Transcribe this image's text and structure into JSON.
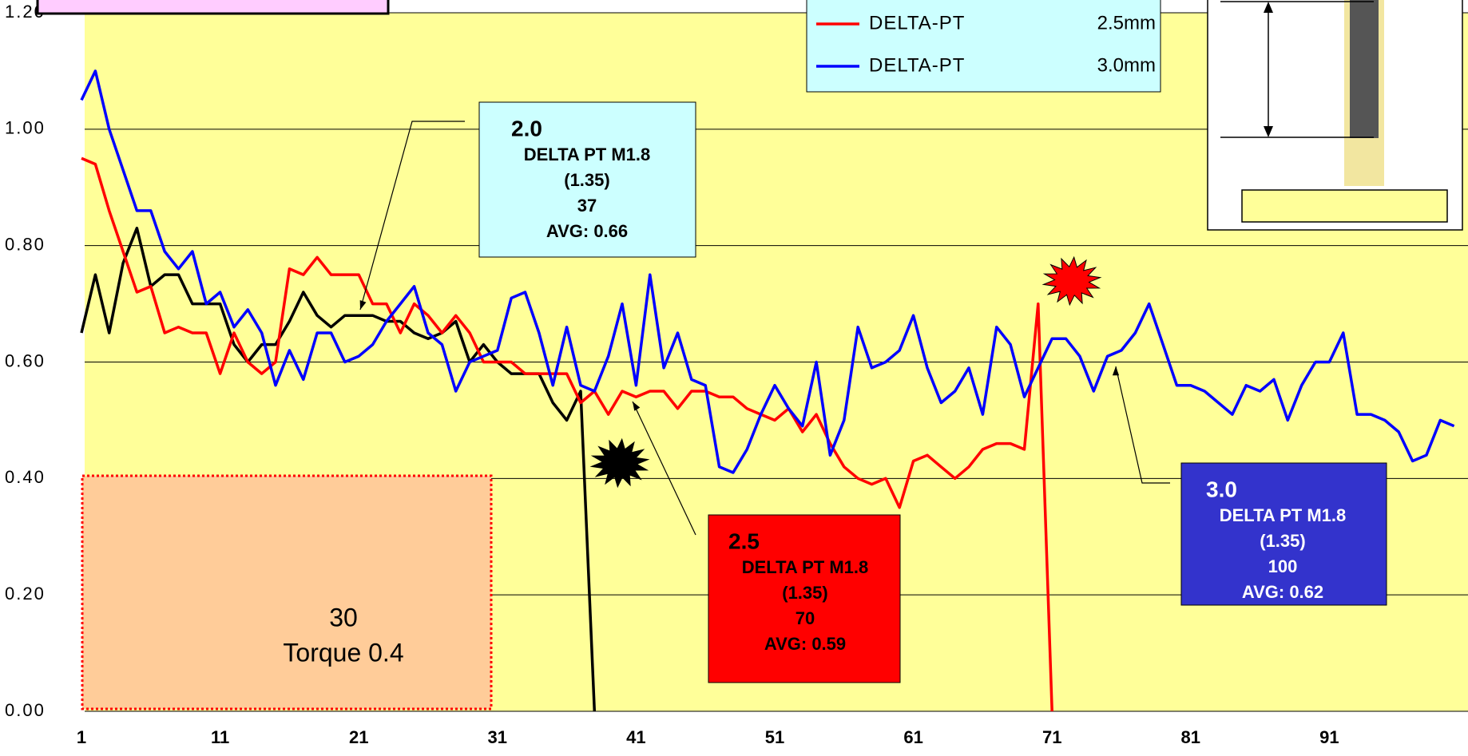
{
  "chart_data": {
    "type": "line",
    "x": [
      1,
      2,
      3,
      4,
      5,
      6,
      7,
      8,
      9,
      10,
      11,
      12,
      13,
      14,
      15,
      16,
      17,
      18,
      19,
      20,
      21,
      22,
      23,
      24,
      25,
      26,
      27,
      28,
      29,
      30,
      31,
      32,
      33,
      34,
      35,
      36,
      37,
      38,
      39,
      40,
      41,
      42,
      43,
      44,
      45,
      46,
      47,
      48,
      49,
      50,
      51,
      52,
      53,
      54,
      55,
      56,
      57,
      58,
      59,
      60,
      61,
      62,
      63,
      64,
      65,
      66,
      67,
      68,
      69,
      70,
      71,
      72,
      73,
      74,
      75,
      76,
      77,
      78,
      79,
      80,
      81,
      82,
      83,
      84,
      85,
      86,
      87,
      88,
      89,
      90,
      91,
      92,
      93,
      94,
      95,
      96,
      97,
      98,
      99,
      100
    ],
    "series": [
      {
        "color": "#000000",
        "values": [
          0.65,
          0.75,
          0.65,
          0.77,
          0.83,
          0.73,
          0.75,
          0.75,
          0.7,
          0.7,
          0.7,
          0.63,
          0.6,
          0.63,
          0.63,
          0.67,
          0.72,
          0.68,
          0.66,
          0.68,
          0.68,
          0.68,
          0.67,
          0.67,
          0.65,
          0.64,
          0.65,
          0.67,
          0.6,
          0.63,
          0.6,
          0.58,
          0.58,
          0.58,
          0.53,
          0.5,
          0.55,
          0.0,
          null,
          null,
          null,
          null,
          null,
          null,
          null,
          null,
          null,
          null,
          null,
          null,
          null,
          null,
          null,
          null,
          null,
          null,
          null,
          null,
          null,
          null,
          null,
          null,
          null,
          null,
          null,
          null,
          null,
          null,
          null,
          null,
          null,
          null,
          null,
          null,
          null,
          null,
          null,
          null,
          null,
          null,
          null,
          null,
          null,
          null,
          null,
          null,
          null,
          null,
          null,
          null,
          null,
          null,
          null,
          null,
          null,
          null,
          null,
          null,
          null,
          null
        ]
      },
      {
        "name": "DELTA-PT",
        "size_label": "2.5mm",
        "color": "#ff0000",
        "values": [
          0.95,
          0.94,
          0.86,
          0.79,
          0.72,
          0.73,
          0.65,
          0.66,
          0.65,
          0.65,
          0.58,
          0.65,
          0.6,
          0.58,
          0.6,
          0.76,
          0.75,
          0.78,
          0.75,
          0.75,
          0.75,
          0.7,
          0.7,
          0.65,
          0.7,
          0.68,
          0.65,
          0.68,
          0.65,
          0.6,
          0.6,
          0.6,
          0.58,
          0.58,
          0.58,
          0.58,
          0.53,
          0.55,
          0.51,
          0.55,
          0.54,
          0.55,
          0.55,
          0.52,
          0.55,
          0.55,
          0.54,
          0.54,
          0.52,
          0.51,
          0.5,
          0.52,
          0.48,
          0.51,
          0.46,
          0.42,
          0.4,
          0.39,
          0.4,
          0.35,
          0.43,
          0.44,
          0.42,
          0.4,
          0.42,
          0.45,
          0.46,
          0.46,
          0.45,
          0.7,
          0.0,
          null,
          null,
          null,
          null,
          null,
          null,
          null,
          null,
          null,
          null,
          null,
          null,
          null,
          null,
          null,
          null,
          null,
          null,
          null,
          null,
          null,
          null,
          null,
          null,
          null,
          null,
          null,
          null,
          null
        ]
      },
      {
        "name": "DELTA-PT",
        "size_label": "3.0mm",
        "color": "#0000ff",
        "values": [
          1.05,
          1.1,
          1.0,
          0.93,
          0.86,
          0.86,
          0.79,
          0.76,
          0.79,
          0.7,
          0.72,
          0.66,
          0.69,
          0.65,
          0.56,
          0.62,
          0.57,
          0.65,
          0.65,
          0.6,
          0.61,
          0.63,
          0.67,
          0.7,
          0.73,
          0.65,
          0.63,
          0.55,
          0.6,
          0.61,
          0.62,
          0.71,
          0.72,
          0.65,
          0.56,
          0.66,
          0.56,
          0.55,
          0.61,
          0.7,
          0.56,
          0.75,
          0.59,
          0.65,
          0.57,
          0.56,
          0.42,
          0.41,
          0.45,
          0.51,
          0.56,
          0.52,
          0.49,
          0.6,
          0.44,
          0.5,
          0.66,
          0.59,
          0.6,
          0.62,
          0.68,
          0.59,
          0.53,
          0.55,
          0.59,
          0.51,
          0.66,
          0.63,
          0.54,
          0.59,
          0.64,
          0.64,
          0.61,
          0.55,
          0.61,
          0.62,
          0.65,
          0.7,
          0.63,
          0.56,
          0.56,
          0.55,
          0.53,
          0.51,
          0.56,
          0.55,
          0.57,
          0.5,
          0.56,
          0.6,
          0.6,
          0.65,
          0.51,
          0.51,
          0.5,
          0.48,
          0.43,
          0.44,
          0.5,
          0.49
        ]
      }
    ],
    "xlim": [
      1,
      101
    ],
    "xticks": [
      1,
      11,
      21,
      31,
      41,
      51,
      61,
      71,
      81,
      91
    ],
    "ylim": [
      0,
      1.2
    ],
    "yticks": [
      {
        "value": 0,
        "label": "0.00"
      },
      {
        "value": 0.2,
        "label": "0.20"
      },
      {
        "value": 0.4,
        "label": "0.40"
      },
      {
        "value": 0.6,
        "label": "0.60"
      },
      {
        "value": 0.8,
        "label": "0.80"
      },
      {
        "value": 1.0,
        "label": "1.00"
      },
      {
        "value": 1.2,
        "label": "1.20"
      }
    ],
    "grid": true,
    "background": "#ffff99",
    "annotations": [
      {
        "lines": [
          "2.0",
          "DELTA PT M1.8",
          "(1.35)",
          "37",
          "AVG: 0.66"
        ],
        "color": "#ccffff",
        "text_color": "#000000"
      },
      {
        "lines": [
          "2.5",
          "DELTA PT M1.8",
          "(1.35)",
          "70",
          "AVG: 0.59"
        ],
        "color": "#ff0000",
        "text_color": "#000000"
      },
      {
        "lines": [
          "3.0",
          "DELTA PT M1.8",
          "(1.35)",
          "100",
          "AVG: 0.62"
        ],
        "color": "#3333cc",
        "text_color": "#ffffff"
      },
      {
        "lines": [
          "30",
          "Torque 0.4"
        ],
        "color": "#ffcc99",
        "text_color": "#000000"
      }
    ]
  }
}
